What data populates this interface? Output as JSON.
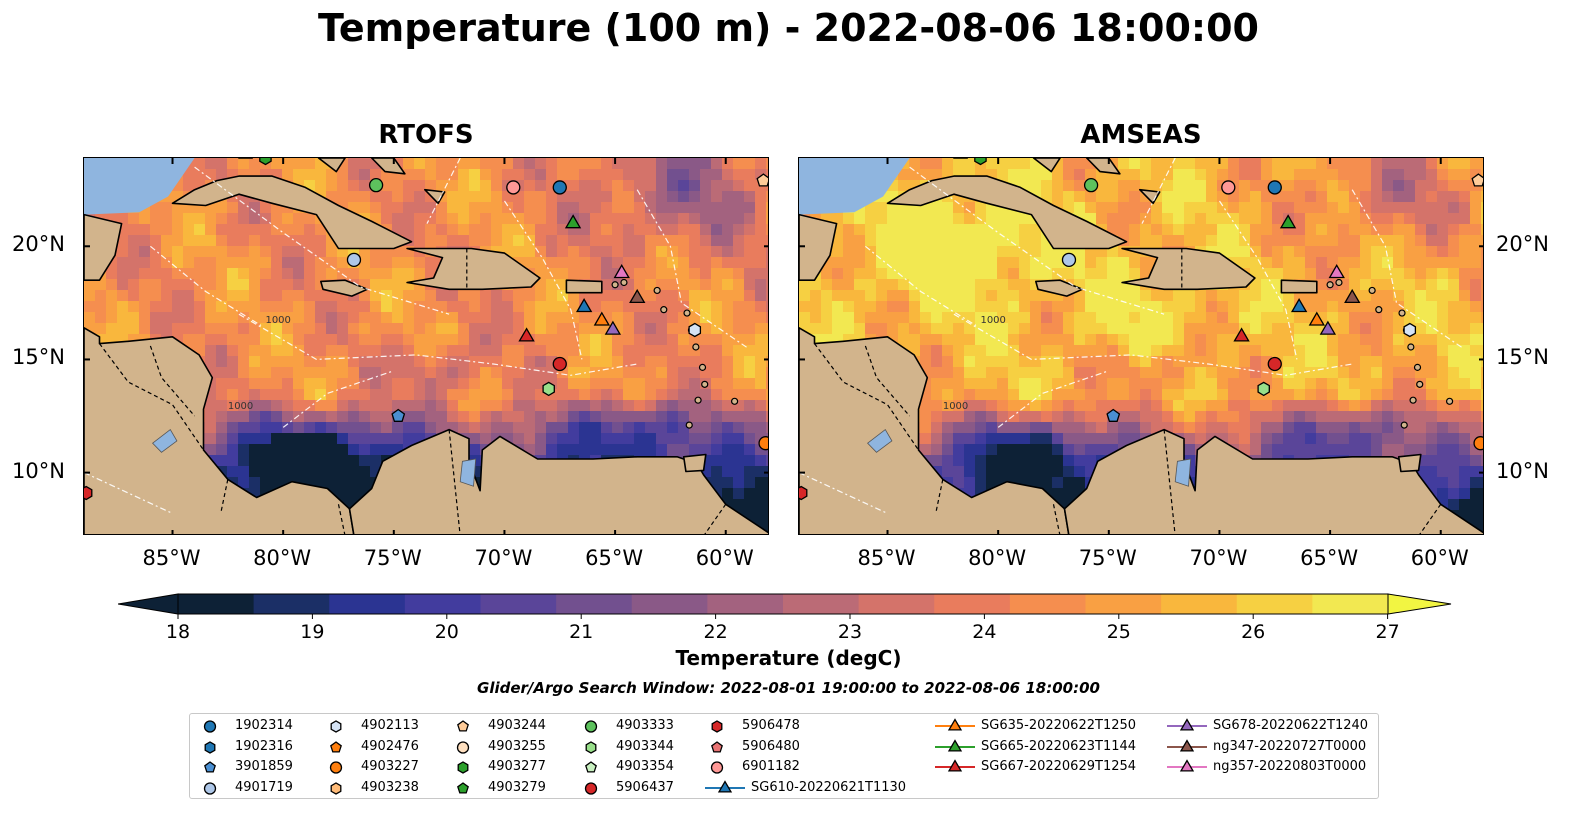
{
  "title": "Temperature (100 m) - 2022-08-06 18:00:00",
  "panels": [
    {
      "name": "RTOFS",
      "palette": "warm"
    },
    {
      "name": "AMSEAS",
      "palette": "hot"
    }
  ],
  "map_extent": {
    "lon": [
      -89,
      -58
    ],
    "lat": [
      7.2,
      23.9
    ]
  },
  "lon_ticks": [
    "85°W",
    "80°W",
    "75°W",
    "70°W",
    "65°W",
    "60°W"
  ],
  "lat_ticks": [
    "20°N",
    "15°N",
    "10°N"
  ],
  "contour_label": "1000",
  "colorbar": {
    "ticks": [
      "18",
      "19",
      "20",
      "21",
      "22",
      "23",
      "24",
      "25",
      "26",
      "27"
    ],
    "label": "Temperature (degC)",
    "colors": [
      "#0d2136",
      "#1b2f66",
      "#2b3492",
      "#423c9e",
      "#5a4599",
      "#72508f",
      "#8a5987",
      "#a3627f",
      "#bb6b76",
      "#d4736a",
      "#e97c5d",
      "#f58e4f",
      "#f9a043",
      "#f9b73d",
      "#f6d042",
      "#f2e851"
    ],
    "under_color": "#0d2136",
    "over_color": "#f2f542"
  },
  "search_window": "Glider/Argo Search Window: 2022-08-01 19:00:00 to 2022-08-06 18:00:00",
  "legend_items": [
    {
      "label": "1902314",
      "shape": "circle",
      "color": "#1f77b4"
    },
    {
      "label": "1902316",
      "shape": "hexagon",
      "color": "#1f77b4"
    },
    {
      "label": "3901859",
      "shape": "pentagon",
      "color": "#4a8fd2"
    },
    {
      "label": "4901719",
      "shape": "circle",
      "color": "#aec7e8"
    },
    {
      "label": "4902113",
      "shape": "hexagon",
      "color": "#d5e3f5"
    },
    {
      "label": "4902476",
      "shape": "pentagon",
      "color": "#ff7f0e"
    },
    {
      "label": "4903227",
      "shape": "circle",
      "color": "#ff7f0e"
    },
    {
      "label": "4903238",
      "shape": "hexagon",
      "color": "#ffbb78"
    },
    {
      "label": "4903244",
      "shape": "pentagon",
      "color": "#ffcc99"
    },
    {
      "label": "4903255",
      "shape": "circle",
      "color": "#ffe0c0"
    },
    {
      "label": "4903277",
      "shape": "hexagon",
      "color": "#2ca02c"
    },
    {
      "label": "4903279",
      "shape": "pentagon",
      "color": "#2ca02c"
    },
    {
      "label": "4903333",
      "shape": "circle",
      "color": "#5dc25d"
    },
    {
      "label": "4903344",
      "shape": "hexagon",
      "color": "#98df8a"
    },
    {
      "label": "4903354",
      "shape": "pentagon",
      "color": "#c8f0c0"
    },
    {
      "label": "5906437",
      "shape": "circle",
      "color": "#d62728"
    },
    {
      "label": "5906478",
      "shape": "hexagon",
      "color": "#d62728"
    },
    {
      "label": "5906480",
      "shape": "pentagon",
      "color": "#e87373"
    },
    {
      "label": "6901182",
      "shape": "circle",
      "color": "#ff9896"
    },
    {
      "label": "SG610-20220621T1130",
      "shape": "triangle",
      "color": "#1f77b4"
    },
    {
      "label": "SG635-20220622T1250",
      "shape": "triangle",
      "color": "#ff7f0e"
    },
    {
      "label": "SG665-20220623T1144",
      "shape": "triangle",
      "color": "#2ca02c"
    },
    {
      "label": "SG667-20220629T1254",
      "shape": "triangle",
      "color": "#d62728"
    },
    {
      "label": "SG678-20220622T1240",
      "shape": "triangle",
      "color": "#9467bd"
    },
    {
      "label": "ng347-20220727T0000",
      "shape": "triangle",
      "color": "#8c564b"
    },
    {
      "label": "ng357-20220803T0000",
      "shape": "triangle",
      "color": "#e377c2"
    }
  ],
  "observations": [
    {
      "id": "4903277",
      "lon": -80.8,
      "lat": 23.9
    },
    {
      "id": "4903333",
      "lon": -75.8,
      "lat": 22.7
    },
    {
      "id": "6901182",
      "lon": -69.6,
      "lat": 22.6
    },
    {
      "id": "1902314",
      "lon": -67.5,
      "lat": 22.6
    },
    {
      "id": "4903244",
      "lon": -58.3,
      "lat": 22.9
    },
    {
      "id": "SG665-20220623T1144",
      "lon": -66.9,
      "lat": 21.0
    },
    {
      "id": "4901719",
      "lon": -76.8,
      "lat": 19.4
    },
    {
      "id": "ng357-20220803T0000",
      "lon": -64.7,
      "lat": 18.8
    },
    {
      "id": "ng347-20220727T0000",
      "lon": -64.0,
      "lat": 17.7
    },
    {
      "id": "SG610-20220621T1130",
      "lon": -66.4,
      "lat": 17.3
    },
    {
      "id": "SG635-20220622T1250",
      "lon": -65.6,
      "lat": 16.7
    },
    {
      "id": "SG678-20220622T1240",
      "lon": -65.1,
      "lat": 16.3
    },
    {
      "id": "SG667-20220629T1254",
      "lon": -69.0,
      "lat": 16.0
    },
    {
      "id": "4902113",
      "lon": -61.4,
      "lat": 16.3
    },
    {
      "id": "5906437",
      "lon": -67.5,
      "lat": 14.8
    },
    {
      "id": "4903344",
      "lon": -68.0,
      "lat": 13.7
    },
    {
      "id": "3901859",
      "lon": -74.8,
      "lat": 12.5
    },
    {
      "id": "4903227",
      "lon": -58.2,
      "lat": 11.3
    },
    {
      "id": "5906478",
      "lon": -88.9,
      "lat": 9.1
    }
  ]
}
